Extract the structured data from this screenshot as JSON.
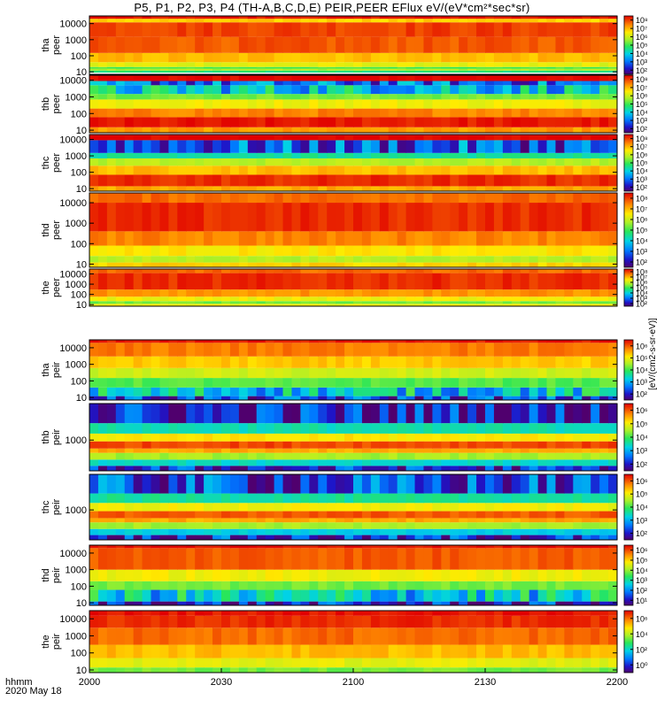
{
  "title": "P5, P1, P2, P3, P4 (TH-A,B,C,D,E) PEIR,PEER EFlux eV/(eV*cm^2*sec*sr)",
  "title_display": "P5, P1, P2, P3, P4 (TH-A,B,C,D,E) PEIR,PEER EFlux eV/(eV*cm²*sec*sr)",
  "x_axis": {
    "format_label": "hhmm",
    "date_label": "2020 May 18",
    "ticks": [
      "2000",
      "2030",
      "2100",
      "2130",
      "2200"
    ],
    "range": [
      "20:00",
      "22:00"
    ]
  },
  "colorbar_label": "[eV/(cm2-s-sr-eV)]",
  "chart_data": [
    {
      "type": "heatmap",
      "probe": "tha",
      "species": "peer",
      "ylabel": [
        "tha",
        "peer"
      ],
      "y_scale": "log",
      "yrange_eV": [
        7,
        30000
      ],
      "y_ticks": [
        "10",
        "100",
        "1000",
        "10000"
      ],
      "cbar_ticks": [
        "10²",
        "10³",
        "10⁴",
        "10⁵",
        "10⁶",
        "10⁷",
        "10⁸"
      ],
      "bands": [
        {
          "lo": 9,
          "hi": 12,
          "level": 0.45
        },
        {
          "lo": 12,
          "hi": 16,
          "level": 0.6
        },
        {
          "lo": 16,
          "hi": 20,
          "level": 0.5
        },
        {
          "lo": 20,
          "hi": 40,
          "level": 0.68
        },
        {
          "lo": 40,
          "hi": 150,
          "level": 0.78
        },
        {
          "lo": 150,
          "hi": 1500,
          "level": 0.9
        },
        {
          "lo": 1500,
          "hi": 12000,
          "level": 0.93
        },
        {
          "lo": 12000,
          "hi": 20000,
          "level": 0.75
        },
        {
          "lo": 20000,
          "hi": 30000,
          "level": 0.98
        }
      ]
    },
    {
      "type": "heatmap",
      "probe": "thb",
      "species": "peer",
      "ylabel": [
        "thb",
        "peer"
      ],
      "y_scale": "log",
      "yrange_eV": [
        7,
        20000
      ],
      "y_ticks": [
        "10",
        "100",
        "1000",
        "10000"
      ],
      "cbar_ticks": [
        "10²",
        "10³",
        "10⁴",
        "10⁵",
        "10⁶",
        "10⁷",
        "10⁸"
      ],
      "bands": [
        {
          "lo": 7,
          "hi": 15,
          "level": 0.82
        },
        {
          "lo": 15,
          "hi": 60,
          "level": 0.97
        },
        {
          "lo": 60,
          "hi": 200,
          "level": 0.85
        },
        {
          "lo": 200,
          "hi": 700,
          "level": 0.7
        },
        {
          "lo": 700,
          "hi": 1500,
          "level": 0.55
        },
        {
          "lo": 1500,
          "hi": 5000,
          "level": 0.35,
          "noise": true
        },
        {
          "lo": 5000,
          "hi": 9000,
          "level": 0.2,
          "noise": true
        },
        {
          "lo": 9000,
          "hi": 20000,
          "level": 1.0
        }
      ]
    },
    {
      "type": "heatmap",
      "probe": "thc",
      "species": "peer",
      "ylabel": [
        "thc",
        "peer"
      ],
      "y_scale": "log",
      "yrange_eV": [
        7,
        20000
      ],
      "y_ticks": [
        "10",
        "100",
        "1000",
        "10000"
      ],
      "cbar_ticks": [
        "10²",
        "10³",
        "10⁴",
        "10⁵",
        "10⁶",
        "10⁷",
        "10⁸"
      ],
      "bands": [
        {
          "lo": 7,
          "hi": 14,
          "level": 0.8
        },
        {
          "lo": 14,
          "hi": 70,
          "level": 0.95
        },
        {
          "lo": 70,
          "hi": 250,
          "level": 0.78
        },
        {
          "lo": 250,
          "hi": 700,
          "level": 0.62
        },
        {
          "lo": 700,
          "hi": 1500,
          "level": 0.42
        },
        {
          "lo": 1500,
          "hi": 9000,
          "level": 0.18,
          "noise": true
        },
        {
          "lo": 9000,
          "hi": 20000,
          "level": 1.0
        }
      ]
    },
    {
      "type": "heatmap",
      "probe": "thd",
      "species": "peer",
      "ylabel": [
        "thd",
        "peer"
      ],
      "y_scale": "log",
      "yrange_eV": [
        7,
        30000
      ],
      "y_ticks": [
        "10",
        "100",
        "1000",
        "10000"
      ],
      "cbar_ticks": [
        "10²",
        "10³",
        "10⁴",
        "10⁵",
        "10⁶",
        "10⁷",
        "10⁸"
      ],
      "bands": [
        {
          "lo": 7,
          "hi": 12,
          "level": 0.75
        },
        {
          "lo": 12,
          "hi": 25,
          "level": 0.62
        },
        {
          "lo": 25,
          "hi": 80,
          "level": 0.72
        },
        {
          "lo": 80,
          "hi": 400,
          "level": 0.85
        },
        {
          "lo": 400,
          "hi": 10000,
          "level": 0.95
        },
        {
          "lo": 10000,
          "hi": 30000,
          "level": 0.88
        }
      ]
    },
    {
      "type": "heatmap",
      "probe": "the",
      "species": "peer",
      "ylabel": [
        "the",
        "peer"
      ],
      "y_scale": "log",
      "yrange_eV": [
        7,
        30000
      ],
      "y_ticks": [
        "10",
        "100",
        "1000",
        "10000"
      ],
      "cbar_ticks": [
        "10²",
        "10³",
        "10⁴",
        "10⁵",
        "10⁶",
        "10⁷",
        "10⁸"
      ],
      "bands": [
        {
          "lo": 7,
          "hi": 12,
          "level": 0.7
        },
        {
          "lo": 12,
          "hi": 22,
          "level": 0.55
        },
        {
          "lo": 22,
          "hi": 60,
          "level": 0.7
        },
        {
          "lo": 60,
          "hi": 300,
          "level": 0.83
        },
        {
          "lo": 300,
          "hi": 12000,
          "level": 0.95
        },
        {
          "lo": 12000,
          "hi": 30000,
          "level": 0.88
        }
      ]
    },
    {
      "type": "heatmap",
      "probe": "tha",
      "species": "peir",
      "ylabel": [
        "tha",
        "peir"
      ],
      "y_scale": "log",
      "yrange_eV": [
        7,
        30000
      ],
      "y_ticks": [
        "10",
        "100",
        "1000",
        "10000"
      ],
      "cbar_ticks": [
        "10²",
        "10³",
        "10⁴",
        "10⁵",
        "10⁶"
      ],
      "bands": [
        {
          "lo": 7,
          "hi": 12,
          "level": 0.15,
          "noise": true
        },
        {
          "lo": 12,
          "hi": 40,
          "level": 0.35,
          "noise": true
        },
        {
          "lo": 40,
          "hi": 150,
          "level": 0.52
        },
        {
          "lo": 150,
          "hi": 600,
          "level": 0.65
        },
        {
          "lo": 600,
          "hi": 3000,
          "level": 0.76
        },
        {
          "lo": 3000,
          "hi": 20000,
          "level": 0.86
        },
        {
          "lo": 20000,
          "hi": 30000,
          "level": 0.97
        }
      ]
    },
    {
      "type": "heatmap",
      "probe": "thb",
      "species": "peir",
      "ylabel": [
        "thb",
        "peir"
      ],
      "y_scale": "log",
      "yrange_eV": [
        80,
        20000
      ],
      "y_ticks": [
        "1000"
      ],
      "cbar_ticks": [
        "10²",
        "10³",
        "10⁴",
        "10⁵",
        "10⁶"
      ],
      "bands": [
        {
          "lo": 80,
          "hi": 120,
          "level": 0.1,
          "noise": true
        },
        {
          "lo": 120,
          "hi": 200,
          "level": 0.38
        },
        {
          "lo": 200,
          "hi": 350,
          "level": 0.6
        },
        {
          "lo": 350,
          "hi": 500,
          "level": 0.8
        },
        {
          "lo": 500,
          "hi": 900,
          "level": 0.92
        },
        {
          "lo": 900,
          "hi": 1700,
          "level": 0.72
        },
        {
          "lo": 1700,
          "hi": 4000,
          "level": 0.4
        },
        {
          "lo": 4000,
          "hi": 20000,
          "level": 0.1,
          "noise": true
        }
      ]
    },
    {
      "type": "heatmap",
      "probe": "thc",
      "species": "peir",
      "ylabel": [
        "thc",
        "peir"
      ],
      "y_scale": "log",
      "yrange_eV": [
        80,
        20000
      ],
      "y_ticks": [
        "1000"
      ],
      "cbar_ticks": [
        "10²",
        "10³",
        "10⁴",
        "10⁵",
        "10⁶"
      ],
      "bands": [
        {
          "lo": 80,
          "hi": 120,
          "level": 0.12,
          "noise": true
        },
        {
          "lo": 120,
          "hi": 200,
          "level": 0.35
        },
        {
          "lo": 200,
          "hi": 350,
          "level": 0.6
        },
        {
          "lo": 350,
          "hi": 500,
          "level": 0.8
        },
        {
          "lo": 500,
          "hi": 900,
          "level": 0.9
        },
        {
          "lo": 900,
          "hi": 1800,
          "level": 0.7
        },
        {
          "lo": 1800,
          "hi": 4000,
          "level": 0.42
        },
        {
          "lo": 4000,
          "hi": 20000,
          "level": 0.15,
          "noise": true
        }
      ]
    },
    {
      "type": "heatmap",
      "probe": "thd",
      "species": "peir",
      "ylabel": [
        "thd",
        "peir"
      ],
      "y_scale": "log",
      "yrange_eV": [
        7,
        30000
      ],
      "y_ticks": [
        "10",
        "100",
        "1000",
        "10000"
      ],
      "cbar_ticks": [
        "10¹",
        "10²",
        "10³",
        "10⁴",
        "10⁵",
        "10⁶"
      ],
      "bands": [
        {
          "lo": 7,
          "hi": 12,
          "level": 0.1,
          "noise": true
        },
        {
          "lo": 12,
          "hi": 60,
          "level": 0.35,
          "noise": true
        },
        {
          "lo": 60,
          "hi": 200,
          "level": 0.55
        },
        {
          "lo": 200,
          "hi": 1000,
          "level": 0.7
        },
        {
          "lo": 1000,
          "hi": 20000,
          "level": 0.9
        },
        {
          "lo": 20000,
          "hi": 30000,
          "level": 0.98
        }
      ]
    },
    {
      "type": "heatmap",
      "probe": "the",
      "species": "peir",
      "ylabel": [
        "the",
        "peir"
      ],
      "y_scale": "log",
      "yrange_eV": [
        7,
        30000
      ],
      "y_ticks": [
        "10",
        "100",
        "1000",
        "10000"
      ],
      "cbar_ticks": [
        "10⁰",
        "10²",
        "10⁴",
        "10⁶"
      ],
      "bands": [
        {
          "lo": 7,
          "hi": 14,
          "level": 0.55
        },
        {
          "lo": 14,
          "hi": 50,
          "level": 0.68
        },
        {
          "lo": 50,
          "hi": 300,
          "level": 0.78
        },
        {
          "lo": 300,
          "hi": 3000,
          "level": 0.88
        },
        {
          "lo": 3000,
          "hi": 15000,
          "level": 0.95
        },
        {
          "lo": 15000,
          "hi": 30000,
          "level": 0.98
        }
      ]
    }
  ]
}
